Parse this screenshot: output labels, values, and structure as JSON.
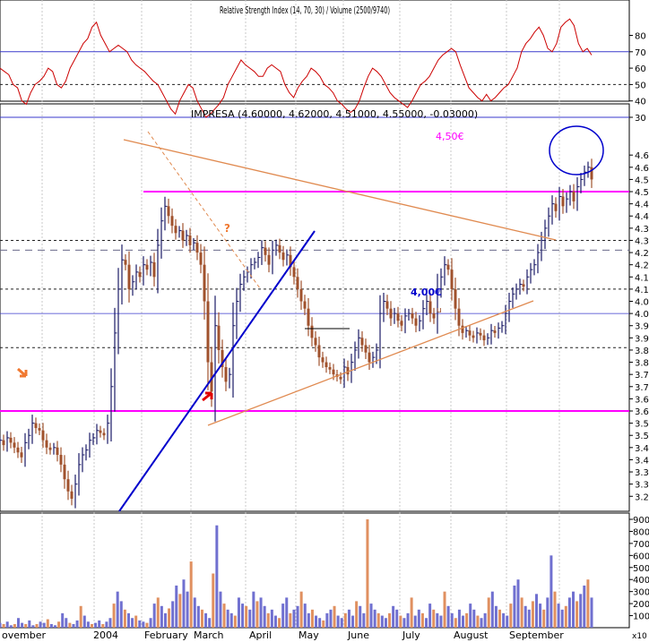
{
  "colors": {
    "rsi_line": "#cc0000",
    "bound_line": "#3a3acc",
    "magenta": "#ff00ff",
    "trendline_orange": "#e08a50",
    "trendline_blue": "#0000cc",
    "up_bar": "#1a1a66",
    "down_bar": "#a0522d",
    "vol_up": "#7070d0",
    "vol_down": "#e09060",
    "grid": "#c8c8c8",
    "dash_gray": "#6a6a8a",
    "dash_black": "#222222",
    "annotation_orange": "#f07830",
    "annotation_red": "#e00000",
    "blue_label": "#0000cc"
  },
  "rsi_panel": {
    "overlapped_caption": "Relative Strength Index (14, 70, 30) / Volume (2500/9740)",
    "ticks": [
      "80",
      "70",
      "60",
      "50",
      "40",
      "30"
    ]
  },
  "price_panel": {
    "header": "IMPRESA (4.60000, 4.62000, 4.51000, 4.55000, -0.03000)",
    "ticks": [
      "4.65",
      "4.60",
      "4.55",
      "4.50",
      "4.45",
      "4.40",
      "4.35",
      "4.30",
      "4.25",
      "4.20",
      "4.15",
      "4.10",
      "4.05",
      "4.00",
      "3.95",
      "3.90",
      "3.85",
      "3.80",
      "3.75",
      "3.70",
      "3.65",
      "3.60",
      "3.55",
      "3.50",
      "3.45",
      "3.40",
      "3.35",
      "3.30",
      "3.25"
    ],
    "label_450": "4,50€",
    "label_400": "4,00€",
    "question_mark": "?",
    "small_u": "u"
  },
  "volume_panel": {
    "ticks": [
      "90000",
      "80000",
      "70000",
      "60000",
      "50000",
      "40000",
      "30000",
      "20000",
      "10000"
    ],
    "multiplier": "x10"
  },
  "x_axis": {
    "labels": [
      "ovember",
      "2004",
      "February",
      "March",
      "April",
      "May",
      "June",
      "July",
      "August",
      "September"
    ]
  },
  "chart_data": {
    "type": "candlestick",
    "title": "IMPRESA",
    "ohlc_last": {
      "open": 4.6,
      "high": 4.62,
      "low": 4.51,
      "close": 4.55,
      "change": -0.03
    },
    "period": "Nov 2003 - Sep 2004",
    "ylim": [
      3.22,
      4.67
    ],
    "price_close_path": [
      3.48,
      3.46,
      3.49,
      3.47,
      3.45,
      3.43,
      3.41,
      3.47,
      3.5,
      3.55,
      3.53,
      3.52,
      3.48,
      3.45,
      3.44,
      3.45,
      3.42,
      3.38,
      3.32,
      3.27,
      3.24,
      3.3,
      3.38,
      3.42,
      3.44,
      3.48,
      3.49,
      3.52,
      3.51,
      3.5,
      3.55,
      3.7,
      3.92,
      4.1,
      4.22,
      4.2,
      4.1,
      4.13,
      4.17,
      4.15,
      4.2,
      4.18,
      4.21,
      4.15,
      4.28,
      4.38,
      4.44,
      4.4,
      4.36,
      4.33,
      4.34,
      4.3,
      4.32,
      4.28,
      4.29,
      4.25,
      4.2,
      4.05,
      3.8,
      3.68,
      3.95,
      3.85,
      3.78,
      3.72,
      3.75,
      3.95,
      4.05,
      4.12,
      4.15,
      4.17,
      4.2,
      4.21,
      4.23,
      4.27,
      4.24,
      4.2,
      4.26,
      4.28,
      4.25,
      4.22,
      4.24,
      4.19,
      4.15,
      4.1,
      4.05,
      4.02,
      3.95,
      3.9,
      3.87,
      3.82,
      3.8,
      3.78,
      3.77,
      3.75,
      3.74,
      3.73,
      3.78,
      3.75,
      3.8,
      3.85,
      3.9,
      3.87,
      3.84,
      3.8,
      3.82,
      3.85,
      4.0,
      4.05,
      4.02,
      3.98,
      4.0,
      3.97,
      3.95,
      3.99,
      4.0,
      3.98,
      3.95,
      3.97,
      4.02,
      4.05,
      4.0,
      3.98,
      4.1,
      4.15,
      4.2,
      4.18,
      4.1,
      4.02,
      3.95,
      3.92,
      3.93,
      3.91,
      3.9,
      3.92,
      3.91,
      3.89,
      3.9,
      3.93,
      3.92,
      3.94,
      3.95,
      4.0,
      4.05,
      4.08,
      4.1,
      4.12,
      4.11,
      4.15,
      4.18,
      4.2,
      4.25,
      4.3,
      4.35,
      4.4,
      4.45,
      4.42,
      4.48,
      4.44,
      4.47,
      4.5,
      4.46,
      4.52,
      4.55,
      4.58,
      4.6,
      4.55
    ],
    "rsi_path": [
      60,
      58,
      56,
      50,
      48,
      40,
      38,
      45,
      50,
      52,
      55,
      60,
      58,
      50,
      48,
      52,
      60,
      65,
      70,
      75,
      78,
      85,
      88,
      80,
      75,
      70,
      72,
      74,
      72,
      70,
      65,
      62,
      60,
      58,
      55,
      52,
      50,
      45,
      40,
      35,
      32,
      40,
      45,
      50,
      48,
      40,
      35,
      30,
      32,
      35,
      38,
      42,
      50,
      55,
      60,
      65,
      62,
      60,
      58,
      55,
      55,
      60,
      62,
      60,
      58,
      50,
      45,
      42,
      48,
      52,
      55,
      60,
      58,
      55,
      50,
      48,
      45,
      40,
      38,
      35,
      33,
      35,
      40,
      48,
      55,
      60,
      58,
      55,
      50,
      45,
      42,
      40,
      38,
      36,
      40,
      45,
      50,
      52,
      55,
      60,
      65,
      68,
      70,
      72,
      70,
      62,
      55,
      48,
      45,
      42,
      40,
      44,
      40,
      42,
      45,
      48,
      50,
      55,
      60,
      70,
      75,
      78,
      82,
      85,
      80,
      72,
      70,
      75,
      85,
      88,
      90,
      86,
      75,
      70,
      72,
      68
    ],
    "volume_path": [
      4,
      3,
      5,
      2,
      3,
      8,
      4,
      3,
      6,
      2,
      3,
      5,
      4,
      7,
      3,
      2,
      5,
      12,
      8,
      4,
      3,
      6,
      18,
      10,
      5,
      3,
      4,
      6,
      3,
      5,
      8,
      20,
      30,
      22,
      15,
      12,
      8,
      10,
      6,
      5,
      4,
      8,
      20,
      25,
      18,
      12,
      16,
      22,
      35,
      28,
      40,
      30,
      55,
      25,
      18,
      15,
      12,
      8,
      45,
      85,
      30,
      20,
      15,
      12,
      10,
      25,
      20,
      18,
      15,
      30,
      22,
      25,
      18,
      12,
      15,
      10,
      8,
      20,
      25,
      12,
      15,
      18,
      30,
      20,
      12,
      15,
      10,
      8,
      6,
      12,
      15,
      18,
      10,
      8,
      12,
      15,
      10,
      22,
      18,
      12,
      90,
      20,
      15,
      12,
      10,
      8,
      12,
      18,
      15,
      10,
      8,
      12,
      25,
      10,
      15,
      12,
      8,
      20,
      15,
      12,
      10,
      30,
      18,
      12,
      8,
      15,
      10,
      12,
      20,
      15,
      10,
      8,
      12,
      25,
      30,
      18,
      15,
      12,
      10,
      20,
      35,
      40,
      25,
      18,
      15,
      22,
      28,
      20,
      15,
      25,
      60,
      30,
      20,
      15,
      18,
      25,
      30,
      22,
      28,
      35,
      40,
      25
    ],
    "horizontal_levels": [
      {
        "value": 4.5,
        "label": "4,50€",
        "style": "solid-magenta"
      },
      {
        "value": 3.6,
        "style": "solid-magenta"
      },
      {
        "value": 4.3,
        "style": "dashed"
      },
      {
        "value": 4.26,
        "style": "dashed-long"
      },
      {
        "value": 4.1,
        "style": "dashed"
      },
      {
        "value": 4.0,
        "label": "4,00€",
        "style": "solid-thin"
      },
      {
        "value": 3.86,
        "style": "dashed"
      }
    ],
    "rsi_levels": [
      70,
      50,
      30
    ],
    "volume_ylim": [
      0,
      90000
    ]
  }
}
